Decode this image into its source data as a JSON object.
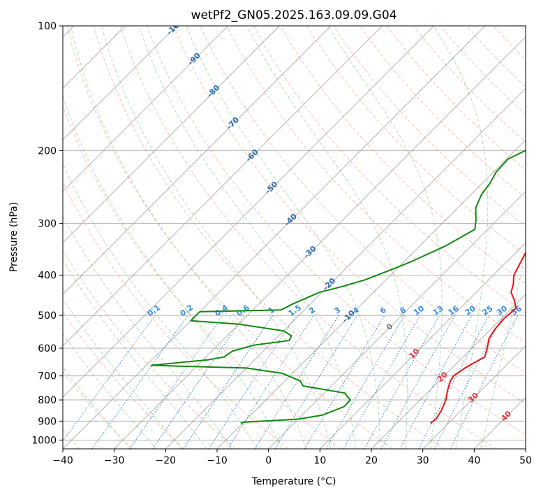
{
  "chart_data": {
    "type": "line",
    "subtype": "skew-T log-P sounding diagram",
    "title": "wetPf2_GN05.2025.163.09.09.G04",
    "xlabel": "Temperature (°C)",
    "ylabel": "Pressure (hPa)",
    "xlim": [
      -40,
      50
    ],
    "ylim_pressure": [
      1050,
      100
    ],
    "y_scale": "log",
    "x_ticks": [
      -40,
      -30,
      -20,
      -10,
      0,
      10,
      20,
      30,
      40,
      50
    ],
    "y_ticks": [
      1000,
      900,
      800,
      700,
      600,
      500,
      400,
      300,
      200,
      100
    ],
    "grid": true,
    "colors": {
      "temperature": "#ee1111",
      "dewpoint": "#118811",
      "isotherm": "#999999",
      "dry_adiabat": "#f4a58c",
      "moist_adiabat": "#9fd49f",
      "mixing_ratio": "#3a86d8",
      "iso_label_blue": "#2b6aa8",
      "mixing_label": "#2f8ee6",
      "adiabat_label_red": "#d9363e",
      "zero_label": "#777777"
    },
    "series": [
      {
        "name": "Temperature",
        "points": [
          [
            26.5,
            910
          ],
          [
            26.8,
            890
          ],
          [
            26.2,
            850
          ],
          [
            25.0,
            800
          ],
          [
            23.5,
            760
          ],
          [
            22.2,
            720
          ],
          [
            21.8,
            700
          ],
          [
            22.5,
            670
          ],
          [
            23.3,
            650
          ],
          [
            24.2,
            630
          ],
          [
            23.0,
            600
          ],
          [
            21.5,
            570
          ],
          [
            20.8,
            540
          ],
          [
            20.5,
            510
          ],
          [
            20.8,
            480
          ],
          [
            19.0,
            460
          ],
          [
            16.8,
            440
          ],
          [
            15.6,
            420
          ],
          [
            14.0,
            400
          ],
          [
            12.7,
            370
          ],
          [
            10.8,
            330
          ],
          [
            9.2,
            300
          ],
          [
            7.0,
            270
          ],
          [
            5.5,
            240
          ],
          [
            4.6,
            215
          ],
          [
            3.6,
            195
          ],
          [
            3.0,
            175
          ],
          [
            3.0,
            160
          ],
          [
            2.5,
            145
          ],
          [
            1.6,
            130
          ],
          [
            2.5,
            120
          ],
          [
            4.5,
            110
          ],
          [
            5.5,
            105
          ],
          [
            6.5,
            100
          ]
        ]
      },
      {
        "name": "Dewpoint",
        "points": [
          [
            -10.4,
            910
          ],
          [
            -9.7,
            905
          ],
          [
            0.0,
            890
          ],
          [
            4.0,
            870
          ],
          [
            6.5,
            830
          ],
          [
            6.4,
            800
          ],
          [
            4.0,
            770
          ],
          [
            -5.5,
            740
          ],
          [
            -7.0,
            720
          ],
          [
            -12.0,
            690
          ],
          [
            -20.0,
            670
          ],
          [
            -39.0,
            660
          ],
          [
            -29.0,
            640
          ],
          [
            -26.5,
            630
          ],
          [
            -26.0,
            610
          ],
          [
            -23.0,
            590
          ],
          [
            -17.0,
            575
          ],
          [
            -17.5,
            560
          ],
          [
            -20.0,
            545
          ],
          [
            -30.0,
            525
          ],
          [
            -40.0,
            515
          ],
          [
            -40.0,
            490
          ],
          [
            -24.5,
            485
          ],
          [
            -23.5,
            470
          ],
          [
            -20.5,
            440
          ],
          [
            -17.0,
            425
          ],
          [
            -14.0,
            410
          ],
          [
            -10.5,
            385
          ],
          [
            -8.5,
            370
          ],
          [
            -5.0,
            340
          ],
          [
            -2.5,
            310
          ],
          [
            -4.0,
            295
          ],
          [
            -6.5,
            275
          ],
          [
            -8.0,
            255
          ],
          [
            -8.5,
            240
          ],
          [
            -9.5,
            225
          ],
          [
            -9.7,
            210
          ],
          [
            -8.0,
            200
          ],
          [
            -7.5,
            185
          ],
          [
            -6.5,
            165
          ],
          [
            -5.5,
            150
          ],
          [
            -4.8,
            140
          ],
          [
            -3.5,
            130
          ],
          [
            -1.5,
            120
          ],
          [
            0.5,
            112
          ],
          [
            2.0,
            105
          ],
          [
            2.3,
            100
          ]
        ]
      }
    ],
    "isotherm_labels": [
      "-100",
      "-90",
      "-80",
      "-70",
      "-60",
      "-50",
      "-40",
      "-30",
      "-20",
      "-10",
      "0",
      "10",
      "20",
      "30",
      "40"
    ],
    "mixing_ratio_labels": [
      "0.1",
      "0.2",
      "0.4",
      "0.6",
      "1",
      "1.5",
      "2",
      "3",
      "4",
      "6",
      "8",
      "10",
      "13",
      "16",
      "20",
      "25",
      "30",
      "36"
    ]
  }
}
